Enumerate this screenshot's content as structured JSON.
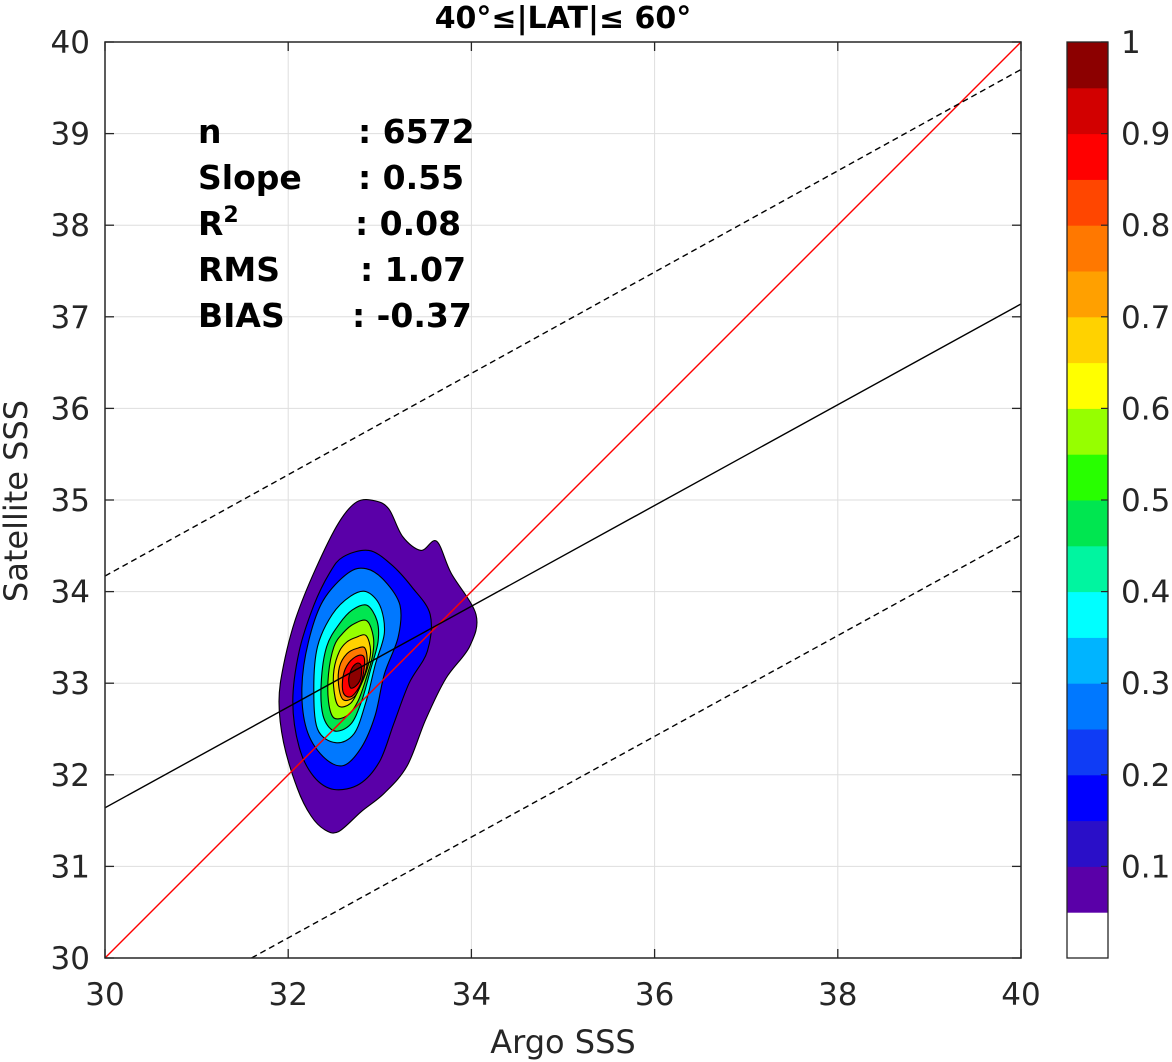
{
  "chart_data": {
    "type": "contour",
    "title": "40°≤|LAT|≤ 60°",
    "xlabel": "Argo SSS",
    "ylabel": "Satellite SSS",
    "xlim": [
      30,
      40
    ],
    "ylim": [
      30,
      40
    ],
    "xticks": [
      "30",
      "32",
      "34",
      "36",
      "38",
      "40"
    ],
    "yticks": [
      "30",
      "31",
      "32",
      "33",
      "34",
      "35",
      "36",
      "37",
      "38",
      "39",
      "40"
    ],
    "grid": true,
    "stats": [
      {
        "label": "n",
        "sep": ":",
        "value": "6572"
      },
      {
        "label": "Slope",
        "sep": ":",
        "value": "0.55"
      },
      {
        "label": "R",
        "sup": "2",
        "sep": ":",
        "value": "0.08"
      },
      {
        "label": "RMS",
        "sep": ":",
        "value": "1.07"
      },
      {
        "label": "BIAS",
        "sep": ":",
        "value": "-0.37"
      }
    ],
    "lines": [
      {
        "role": "one-to-one",
        "color": "#ff0000",
        "style": "solid",
        "points": [
          [
            30,
            30
          ],
          [
            40,
            40
          ]
        ]
      },
      {
        "role": "regression",
        "color": "#000000",
        "style": "solid",
        "points": [
          [
            30,
            31.64
          ],
          [
            40,
            37.14
          ]
        ]
      },
      {
        "role": "upper-bound",
        "color": "#000000",
        "style": "dashed",
        "points": [
          [
            30,
            34.17
          ],
          [
            40,
            39.7
          ]
        ]
      },
      {
        "role": "lower-bound",
        "color": "#000000",
        "style": "dashed",
        "points": [
          [
            31.6,
            30
          ],
          [
            40,
            34.62
          ]
        ]
      }
    ],
    "density": {
      "center": [
        32.66,
        32.95
      ],
      "levels": [
        0.05,
        0.15,
        0.25,
        0.35,
        0.45,
        0.55,
        0.65,
        0.75,
        0.85,
        0.95
      ],
      "contours": [
        {
          "level": 0.05,
          "points": [
            [
              32.75,
              34.98
            ],
            [
              32.95,
              34.99
            ],
            [
              33.1,
              34.9
            ],
            [
              33.25,
              34.6
            ],
            [
              33.45,
              34.45
            ],
            [
              33.62,
              34.55
            ],
            [
              33.78,
              34.2
            ],
            [
              34.05,
              33.75
            ],
            [
              33.98,
              33.4
            ],
            [
              33.72,
              33.05
            ],
            [
              33.5,
              32.6
            ],
            [
              33.3,
              32.1
            ],
            [
              33.05,
              31.8
            ],
            [
              32.8,
              31.6
            ],
            [
              32.55,
              31.38
            ],
            [
              32.4,
              31.4
            ],
            [
              32.25,
              31.55
            ],
            [
              32.1,
              31.85
            ],
            [
              31.95,
              32.35
            ],
            [
              31.9,
              32.8
            ],
            [
              31.95,
              33.2
            ],
            [
              32.08,
              33.7
            ],
            [
              32.3,
              34.25
            ],
            [
              32.55,
              34.75
            ]
          ]
        },
        {
          "level": 0.15,
          "points": [
            [
              32.6,
              34.38
            ],
            [
              32.88,
              34.45
            ],
            [
              33.12,
              34.3
            ],
            [
              33.35,
              34.05
            ],
            [
              33.55,
              33.75
            ],
            [
              33.52,
              33.35
            ],
            [
              33.32,
              33.0
            ],
            [
              33.15,
              32.55
            ],
            [
              33.0,
              32.15
            ],
            [
              32.78,
              31.9
            ],
            [
              32.5,
              31.84
            ],
            [
              32.28,
              31.98
            ],
            [
              32.12,
              32.3
            ],
            [
              32.05,
              32.8
            ],
            [
              32.12,
              33.35
            ],
            [
              32.28,
              33.85
            ],
            [
              32.45,
              34.2
            ]
          ]
        },
        {
          "level": 0.25,
          "points": [
            [
              32.65,
              34.2
            ],
            [
              32.85,
              34.25
            ],
            [
              33.05,
              34.12
            ],
            [
              33.22,
              33.85
            ],
            [
              33.2,
              33.5
            ],
            [
              33.05,
              33.1
            ],
            [
              32.95,
              32.65
            ],
            [
              32.8,
              32.3
            ],
            [
              32.6,
              32.1
            ],
            [
              32.38,
              32.2
            ],
            [
              32.2,
              32.5
            ],
            [
              32.15,
              32.95
            ],
            [
              32.22,
              33.45
            ],
            [
              32.38,
              33.9
            ]
          ]
        },
        {
          "level": 0.35,
          "points": [
            [
              32.68,
              33.95
            ],
            [
              32.85,
              34.0
            ],
            [
              33.0,
              33.85
            ],
            [
              33.05,
              33.55
            ],
            [
              32.95,
              33.2
            ],
            [
              32.85,
              32.8
            ],
            [
              32.72,
              32.45
            ],
            [
              32.52,
              32.35
            ],
            [
              32.32,
              32.5
            ],
            [
              32.28,
              32.95
            ],
            [
              32.32,
              33.4
            ],
            [
              32.48,
              33.75
            ]
          ]
        },
        {
          "level": 0.45,
          "points": [
            [
              32.7,
              33.8
            ],
            [
              32.86,
              33.85
            ],
            [
              32.97,
              33.68
            ],
            [
              32.98,
              33.45
            ],
            [
              32.9,
              33.15
            ],
            [
              32.8,
              32.8
            ],
            [
              32.68,
              32.55
            ],
            [
              32.5,
              32.48
            ],
            [
              32.38,
              32.65
            ],
            [
              32.36,
              33.0
            ],
            [
              32.42,
              33.4
            ],
            [
              32.56,
              33.65
            ]
          ]
        },
        {
          "level": 0.55,
          "points": [
            [
              32.72,
              33.65
            ],
            [
              32.86,
              33.68
            ],
            [
              32.93,
              33.5
            ],
            [
              32.92,
              33.3
            ],
            [
              32.85,
              33.05
            ],
            [
              32.76,
              32.8
            ],
            [
              32.65,
              32.65
            ],
            [
              32.5,
              32.62
            ],
            [
              32.44,
              32.8
            ],
            [
              32.44,
              33.1
            ],
            [
              32.5,
              33.4
            ],
            [
              32.6,
              33.55
            ]
          ]
        },
        {
          "level": 0.65,
          "points": [
            [
              32.74,
              33.5
            ],
            [
              32.85,
              33.52
            ],
            [
              32.9,
              33.35
            ],
            [
              32.86,
              33.15
            ],
            [
              32.78,
              32.95
            ],
            [
              32.68,
              32.78
            ],
            [
              32.55,
              32.75
            ],
            [
              32.5,
              32.92
            ],
            [
              32.5,
              33.15
            ],
            [
              32.56,
              33.35
            ],
            [
              32.64,
              33.45
            ]
          ]
        },
        {
          "level": 0.75,
          "points": [
            [
              32.75,
              33.38
            ],
            [
              32.84,
              33.38
            ],
            [
              32.86,
              33.2
            ],
            [
              32.8,
              33.0
            ],
            [
              32.72,
              32.85
            ],
            [
              32.6,
              32.82
            ],
            [
              32.55,
              32.98
            ],
            [
              32.56,
              33.18
            ],
            [
              32.64,
              33.32
            ]
          ]
        },
        {
          "level": 0.85,
          "points": [
            [
              32.76,
              33.3
            ],
            [
              32.83,
              33.28
            ],
            [
              32.82,
              33.1
            ],
            [
              32.77,
              32.95
            ],
            [
              32.68,
              32.85
            ],
            [
              32.6,
              32.9
            ],
            [
              32.6,
              33.08
            ],
            [
              32.66,
              33.22
            ]
          ]
        },
        {
          "level": 0.95,
          "points": [
            [
              32.76,
              33.22
            ],
            [
              32.8,
              33.18
            ],
            [
              32.79,
              33.05
            ],
            [
              32.74,
              32.97
            ],
            [
              32.68,
              32.95
            ],
            [
              32.66,
              33.05
            ],
            [
              32.7,
              33.17
            ]
          ]
        }
      ]
    },
    "colorbar": {
      "limits": [
        0,
        1
      ],
      "ticks": [
        0.1,
        0.2,
        0.3,
        0.4,
        0.5,
        0.6,
        0.7,
        0.8,
        0.9,
        1
      ],
      "tick_labels": [
        "0.1",
        "0.2",
        "0.3",
        "0.4",
        "0.5",
        "0.6",
        "0.7",
        "0.8",
        "0.9",
        "1"
      ],
      "bands": [
        {
          "from": 0.0,
          "to": 0.05,
          "color": "#ffffff"
        },
        {
          "from": 0.05,
          "to": 0.1,
          "color": "#5a00a8"
        },
        {
          "from": 0.1,
          "to": 0.15,
          "color": "#2a0fc8"
        },
        {
          "from": 0.15,
          "to": 0.2,
          "color": "#0000ff"
        },
        {
          "from": 0.2,
          "to": 0.25,
          "color": "#0f3cf5"
        },
        {
          "from": 0.25,
          "to": 0.3,
          "color": "#0078ff"
        },
        {
          "from": 0.3,
          "to": 0.35,
          "color": "#00b4ff"
        },
        {
          "from": 0.35,
          "to": 0.4,
          "color": "#00ffff"
        },
        {
          "from": 0.4,
          "to": 0.45,
          "color": "#00f5a0"
        },
        {
          "from": 0.45,
          "to": 0.5,
          "color": "#00e650"
        },
        {
          "from": 0.5,
          "to": 0.55,
          "color": "#28ff00"
        },
        {
          "from": 0.55,
          "to": 0.6,
          "color": "#96ff00"
        },
        {
          "from": 0.6,
          "to": 0.65,
          "color": "#ffff00"
        },
        {
          "from": 0.65,
          "to": 0.7,
          "color": "#ffd200"
        },
        {
          "from": 0.7,
          "to": 0.75,
          "color": "#ffa000"
        },
        {
          "from": 0.75,
          "to": 0.8,
          "color": "#ff7800"
        },
        {
          "from": 0.8,
          "to": 0.85,
          "color": "#ff4600"
        },
        {
          "from": 0.85,
          "to": 0.9,
          "color": "#ff0000"
        },
        {
          "from": 0.9,
          "to": 0.95,
          "color": "#d20000"
        },
        {
          "from": 0.95,
          "to": 1.0,
          "color": "#8c0000"
        }
      ]
    }
  }
}
